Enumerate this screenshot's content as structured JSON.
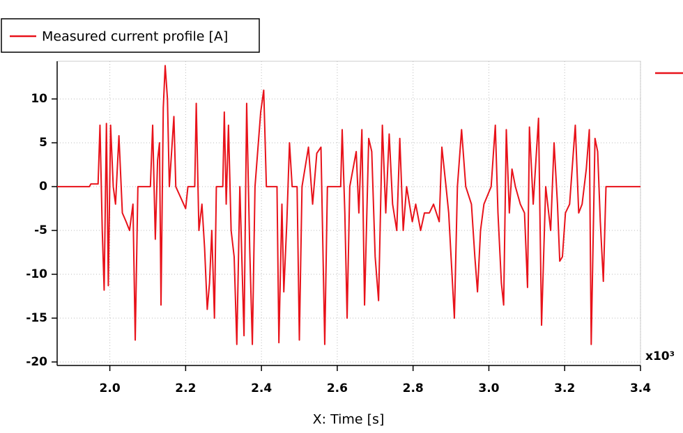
{
  "chart_data": {
    "type": "line",
    "legend": "top-left",
    "grid": true,
    "x_label": "X: Time [s]",
    "x_multiplier": "x10³",
    "xlim": [
      1.861,
      3.4
    ],
    "xticks": [
      {
        "value": 2,
        "label": "2.0"
      },
      2.2,
      2.4,
      2.6,
      2.8,
      {
        "value": 3,
        "label": "3.0"
      },
      3.2,
      3.4
    ],
    "ylim": [
      -20.4,
      14.3
    ],
    "yticks": [
      -20,
      -15,
      -10,
      -5,
      0,
      5,
      10
    ],
    "series": [
      {
        "name": "Measured current profile [A]",
        "color": "#e8121a",
        "x": [
          1.861,
          1.946,
          1.95,
          1.969,
          1.974,
          1.98,
          1.985,
          1.991,
          1.996,
          2.002,
          2.009,
          2.015,
          2.024,
          2.033,
          2.043,
          2.052,
          2.061,
          2.067,
          2.074,
          2.107,
          2.113,
          2.12,
          2.126,
          2.131,
          2.135,
          2.141,
          2.146,
          2.152,
          2.157,
          2.169,
          2.174,
          2.2,
          2.206,
          2.224,
          2.228,
          2.235,
          2.243,
          2.25,
          2.257,
          2.263,
          2.269,
          2.276,
          2.281,
          2.298,
          2.302,
          2.307,
          2.313,
          2.32,
          2.328,
          2.335,
          2.343,
          2.354,
          2.361,
          2.369,
          2.376,
          2.383,
          2.398,
          2.406,
          2.413,
          2.441,
          2.446,
          2.454,
          2.459,
          2.467,
          2.474,
          2.481,
          2.494,
          2.5,
          2.507,
          2.524,
          2.535,
          2.546,
          2.557,
          2.567,
          2.574,
          2.609,
          2.613,
          2.62,
          2.626,
          2.633,
          2.65,
          2.657,
          2.665,
          2.672,
          2.683,
          2.691,
          2.7,
          2.709,
          2.719,
          2.728,
          2.737,
          2.746,
          2.757,
          2.765,
          2.774,
          2.783,
          2.798,
          2.807,
          2.82,
          2.83,
          2.843,
          2.854,
          2.869,
          2.876,
          2.887,
          2.894,
          2.909,
          2.917,
          2.928,
          2.939,
          2.954,
          2.963,
          2.97,
          2.978,
          2.987,
          3.006,
          3.017,
          3.024,
          3.033,
          3.039,
          3.046,
          3.054,
          3.061,
          3.07,
          3.083,
          3.094,
          3.102,
          3.107,
          3.117,
          3.131,
          3.139,
          3.15,
          3.163,
          3.172,
          3.181,
          3.187,
          3.194,
          3.202,
          3.213,
          3.228,
          3.237,
          3.246,
          3.257,
          3.265,
          3.27,
          3.28,
          3.287,
          3.294,
          3.302,
          3.309,
          3.32,
          3.4
        ],
        "values": [
          0,
          0,
          0.3,
          0.3,
          7,
          -5,
          -11.8,
          7.2,
          -11.3,
          7,
          0,
          -2,
          5.8,
          -3,
          -4,
          -5,
          -2,
          -17.5,
          0,
          0,
          7,
          -6,
          3,
          5,
          -13.5,
          9,
          13.8,
          10,
          0,
          8,
          0,
          -2.5,
          0,
          0,
          9.5,
          -5,
          -2,
          -7,
          -14,
          -11,
          -5,
          -15,
          0,
          0,
          8.5,
          -2,
          7,
          -5,
          -8,
          -18,
          0,
          -17,
          9.5,
          -7,
          -18,
          0,
          8.5,
          11,
          0,
          0,
          -17.8,
          -2,
          -12,
          -4,
          5,
          0,
          0,
          -17.5,
          0,
          4.5,
          -2,
          3.8,
          4.5,
          -18,
          0,
          0,
          6.5,
          -3,
          -15,
          0,
          4,
          -3,
          6.5,
          -13.5,
          5.5,
          4,
          -8,
          -13,
          7,
          -3,
          6,
          -2,
          -5,
          5.5,
          -5,
          0,
          -4,
          -2,
          -5,
          -3,
          -3,
          -2,
          -4,
          4.5,
          0,
          -3,
          -15,
          0,
          6.5,
          0,
          -2,
          -8,
          -12,
          -5,
          -2,
          0,
          7,
          -3,
          -11,
          -13.5,
          6.5,
          -3,
          2,
          0,
          -2,
          -3,
          -11.5,
          6.8,
          -2,
          7.8,
          -15.8,
          0,
          -5,
          5,
          -2,
          -8.5,
          -8,
          -3,
          -2,
          7,
          -3,
          -2,
          2,
          6.5,
          -18,
          5.5,
          4,
          -4,
          -10.8,
          0,
          0,
          0
        ]
      }
    ]
  }
}
